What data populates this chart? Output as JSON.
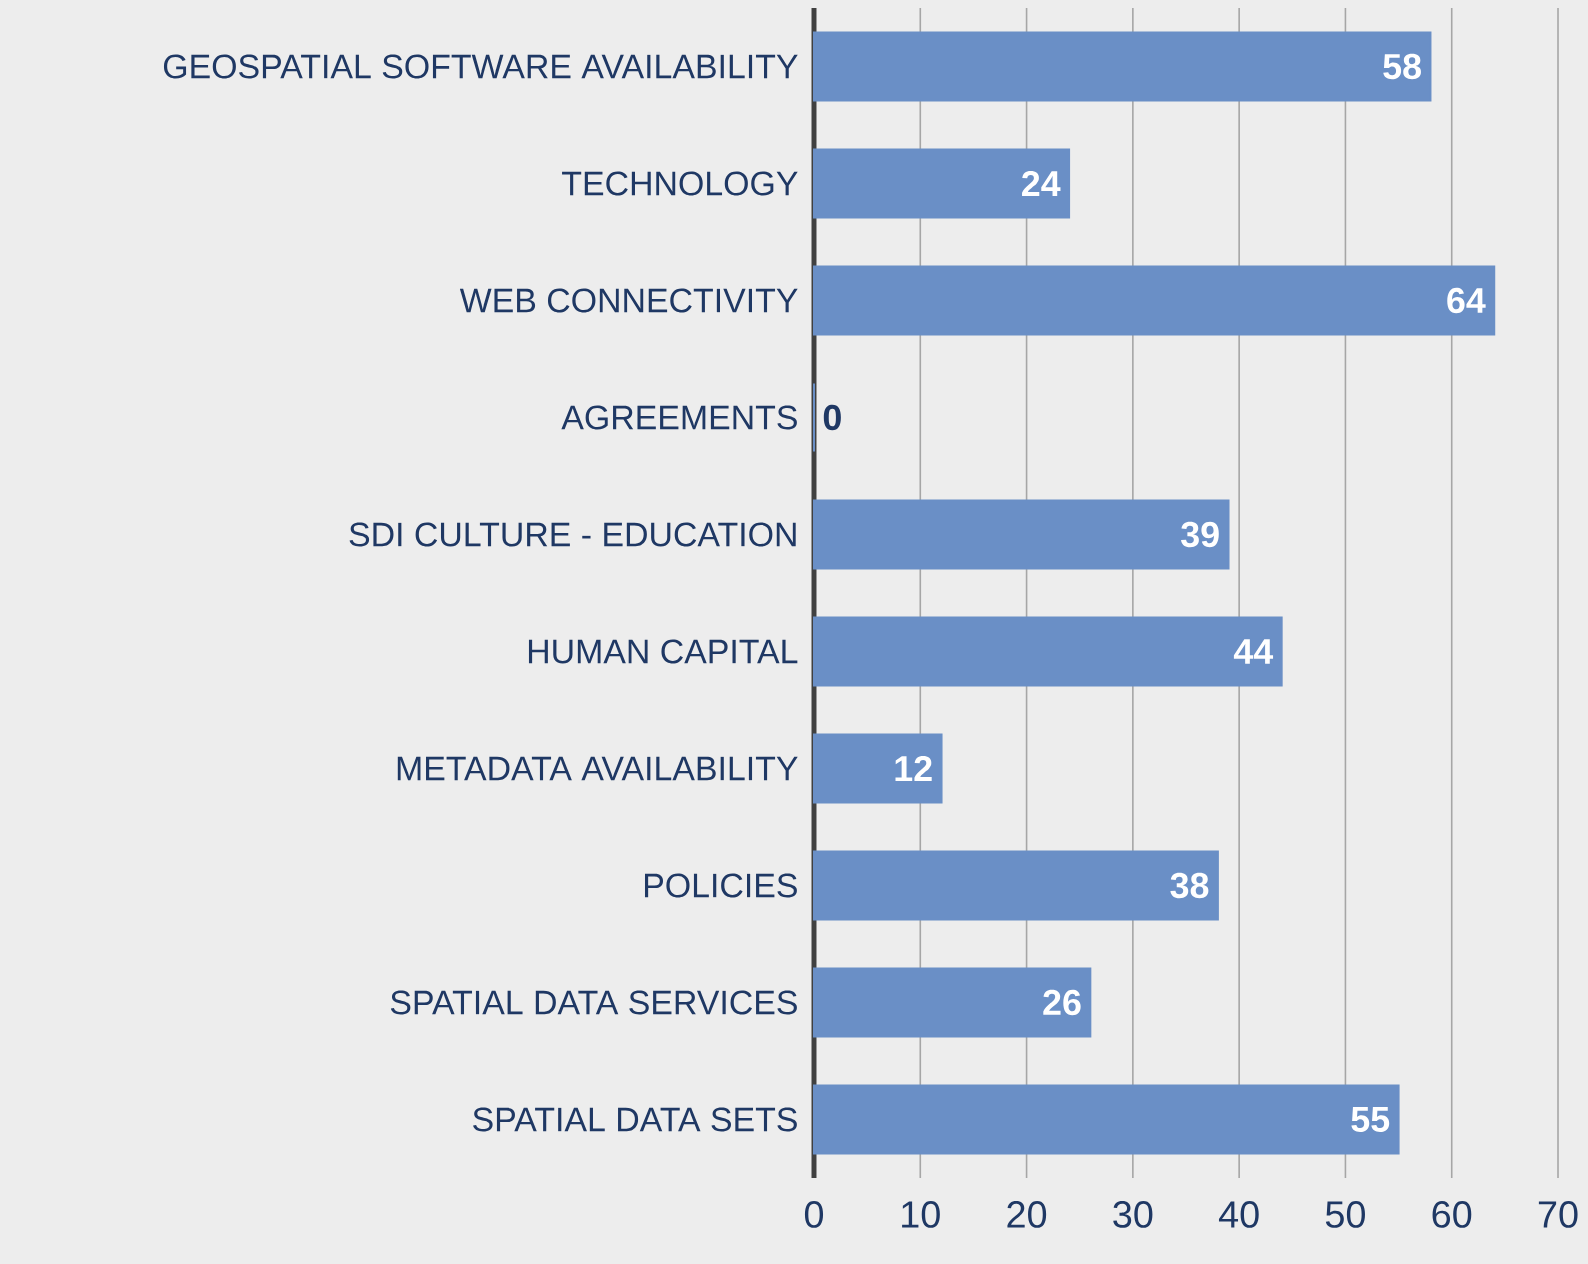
{
  "chart_data": {
    "type": "bar",
    "orientation": "horizontal",
    "categories": [
      "GEOSPATIAL SOFTWARE AVAILABILITY",
      "TECHNOLOGY",
      "WEB CONNECTIVITY",
      "AGREEMENTS",
      "SDI CULTURE - EDUCATION",
      "HUMAN CAPITAL",
      "METADATA AVAILABILITY",
      "POLICIES",
      "SPATIAL DATA SERVICES",
      "SPATIAL DATA SETS"
    ],
    "values": [
      58,
      24,
      64,
      0,
      39,
      44,
      12,
      38,
      26,
      55
    ],
    "color": "#6a8fc6",
    "xlim": [
      0,
      70
    ],
    "xticks": [
      0,
      10,
      20,
      30,
      40,
      50,
      60,
      70
    ],
    "grid": "x",
    "data_labels": true
  }
}
